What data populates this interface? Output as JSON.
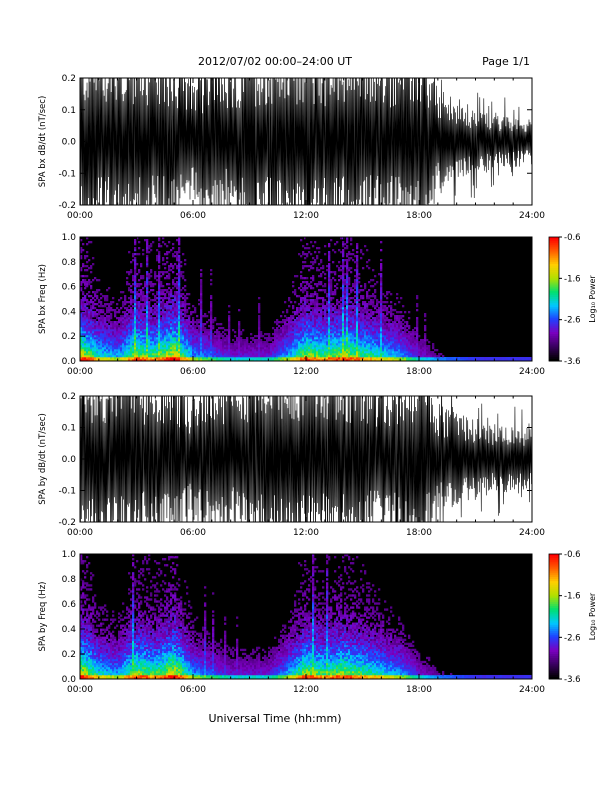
{
  "header": {
    "title": "2012/07/02  00:00–24:00 UT",
    "page": "Page 1/1"
  },
  "xlabel": "Universal Time (hh:mm)",
  "colorbar": {
    "label": "Log₁₀ Power",
    "ticks": [
      "-0.6",
      "-1.6",
      "-2.6",
      "-3.6"
    ],
    "range": [
      -3.6,
      -0.6
    ],
    "colors": [
      "#000000",
      "#3a0060",
      "#7a00c0",
      "#2040ff",
      "#00c8ff",
      "#00e070",
      "#b0e000",
      "#ffd000",
      "#ff6000",
      "#ff0000"
    ]
  },
  "chart_data": [
    {
      "type": "line",
      "ylabel": "SPA bx dB/dt (nT/sec)",
      "xlim": [
        0,
        24
      ],
      "ylim": [
        -0.2,
        0.2
      ],
      "x_ticks": [
        "00:00",
        "06:00",
        "12:00",
        "18:00",
        "24:00"
      ],
      "y_ticks": [
        "0.2",
        "0.1",
        "0.0",
        "-0.1",
        "-0.2"
      ],
      "series_color": "#000000",
      "envelope_hours": [
        0,
        1,
        2,
        3,
        4,
        5,
        6,
        7,
        8,
        9,
        10,
        11,
        12,
        13,
        14,
        15,
        16,
        17,
        18,
        19,
        20,
        21,
        22,
        23,
        24
      ],
      "envelope_amplitude": [
        0.2,
        0.2,
        0.2,
        0.2,
        0.18,
        0.2,
        0.12,
        0.2,
        0.14,
        0.2,
        0.2,
        0.2,
        0.2,
        0.2,
        0.2,
        0.2,
        0.17,
        0.2,
        0.2,
        0.12,
        0.08,
        0.07,
        0.06,
        0.05,
        0.05
      ]
    },
    {
      "type": "heatmap",
      "ylabel": "SPA bx Freq (Hz)",
      "xlim": [
        0,
        24
      ],
      "ylim": [
        0,
        1.0
      ],
      "x_ticks": [
        "00:00",
        "06:00",
        "12:00",
        "18:00",
        "24:00"
      ],
      "y_ticks": [
        "1.0",
        "0.8",
        "0.6",
        "0.4",
        "0.2",
        "0.0"
      ],
      "colorbar_range": [
        -3.6,
        -0.6
      ],
      "activity_hours": [
        0,
        1,
        2,
        3,
        4,
        5,
        6,
        7,
        8,
        9,
        10,
        11,
        12,
        13,
        14,
        15,
        16,
        17,
        18,
        19,
        20,
        21,
        22,
        23,
        24
      ],
      "activity_level": [
        0.9,
        0.6,
        0.5,
        0.8,
        0.7,
        0.9,
        0.5,
        0.4,
        0.3,
        0.3,
        0.3,
        0.5,
        0.8,
        0.7,
        0.8,
        0.7,
        0.6,
        0.5,
        0.3,
        0.2,
        0.15,
        0.1,
        0.1,
        0.1,
        0.1
      ]
    },
    {
      "type": "line",
      "ylabel": "SPA by dB/dt (nT/sec)",
      "xlim": [
        0,
        24
      ],
      "ylim": [
        -0.2,
        0.2
      ],
      "x_ticks": [
        "00:00",
        "06:00",
        "12:00",
        "18:00",
        "24:00"
      ],
      "y_ticks": [
        "0.2",
        "0.1",
        "0.0",
        "-0.1",
        "-0.2"
      ],
      "series_color": "#000000",
      "envelope_hours": [
        0,
        1,
        2,
        3,
        4,
        5,
        6,
        7,
        8,
        9,
        10,
        11,
        12,
        13,
        14,
        15,
        16,
        17,
        18,
        19,
        20,
        21,
        22,
        23,
        24
      ],
      "envelope_amplitude": [
        0.2,
        0.2,
        0.2,
        0.2,
        0.17,
        0.2,
        0.13,
        0.2,
        0.15,
        0.2,
        0.2,
        0.2,
        0.2,
        0.2,
        0.2,
        0.2,
        0.16,
        0.2,
        0.2,
        0.13,
        0.1,
        0.09,
        0.08,
        0.07,
        0.07
      ]
    },
    {
      "type": "heatmap",
      "ylabel": "SPA by Freq (Hz)",
      "xlim": [
        0,
        24
      ],
      "ylim": [
        0,
        1.0
      ],
      "x_ticks": [
        "00:00",
        "06:00",
        "12:00",
        "18:00",
        "24:00"
      ],
      "y_ticks": [
        "1.0",
        "0.8",
        "0.6",
        "0.4",
        "0.2",
        "0.0"
      ],
      "colorbar_range": [
        -3.6,
        -0.6
      ],
      "activity_hours": [
        0,
        1,
        2,
        3,
        4,
        5,
        6,
        7,
        8,
        9,
        10,
        11,
        12,
        13,
        14,
        15,
        16,
        17,
        18,
        19,
        20,
        21,
        22,
        23,
        24
      ],
      "activity_level": [
        0.9,
        0.6,
        0.5,
        0.8,
        0.7,
        0.9,
        0.5,
        0.4,
        0.3,
        0.3,
        0.3,
        0.5,
        0.8,
        0.7,
        0.8,
        0.7,
        0.6,
        0.5,
        0.3,
        0.2,
        0.15,
        0.1,
        0.1,
        0.1,
        0.1
      ]
    }
  ]
}
